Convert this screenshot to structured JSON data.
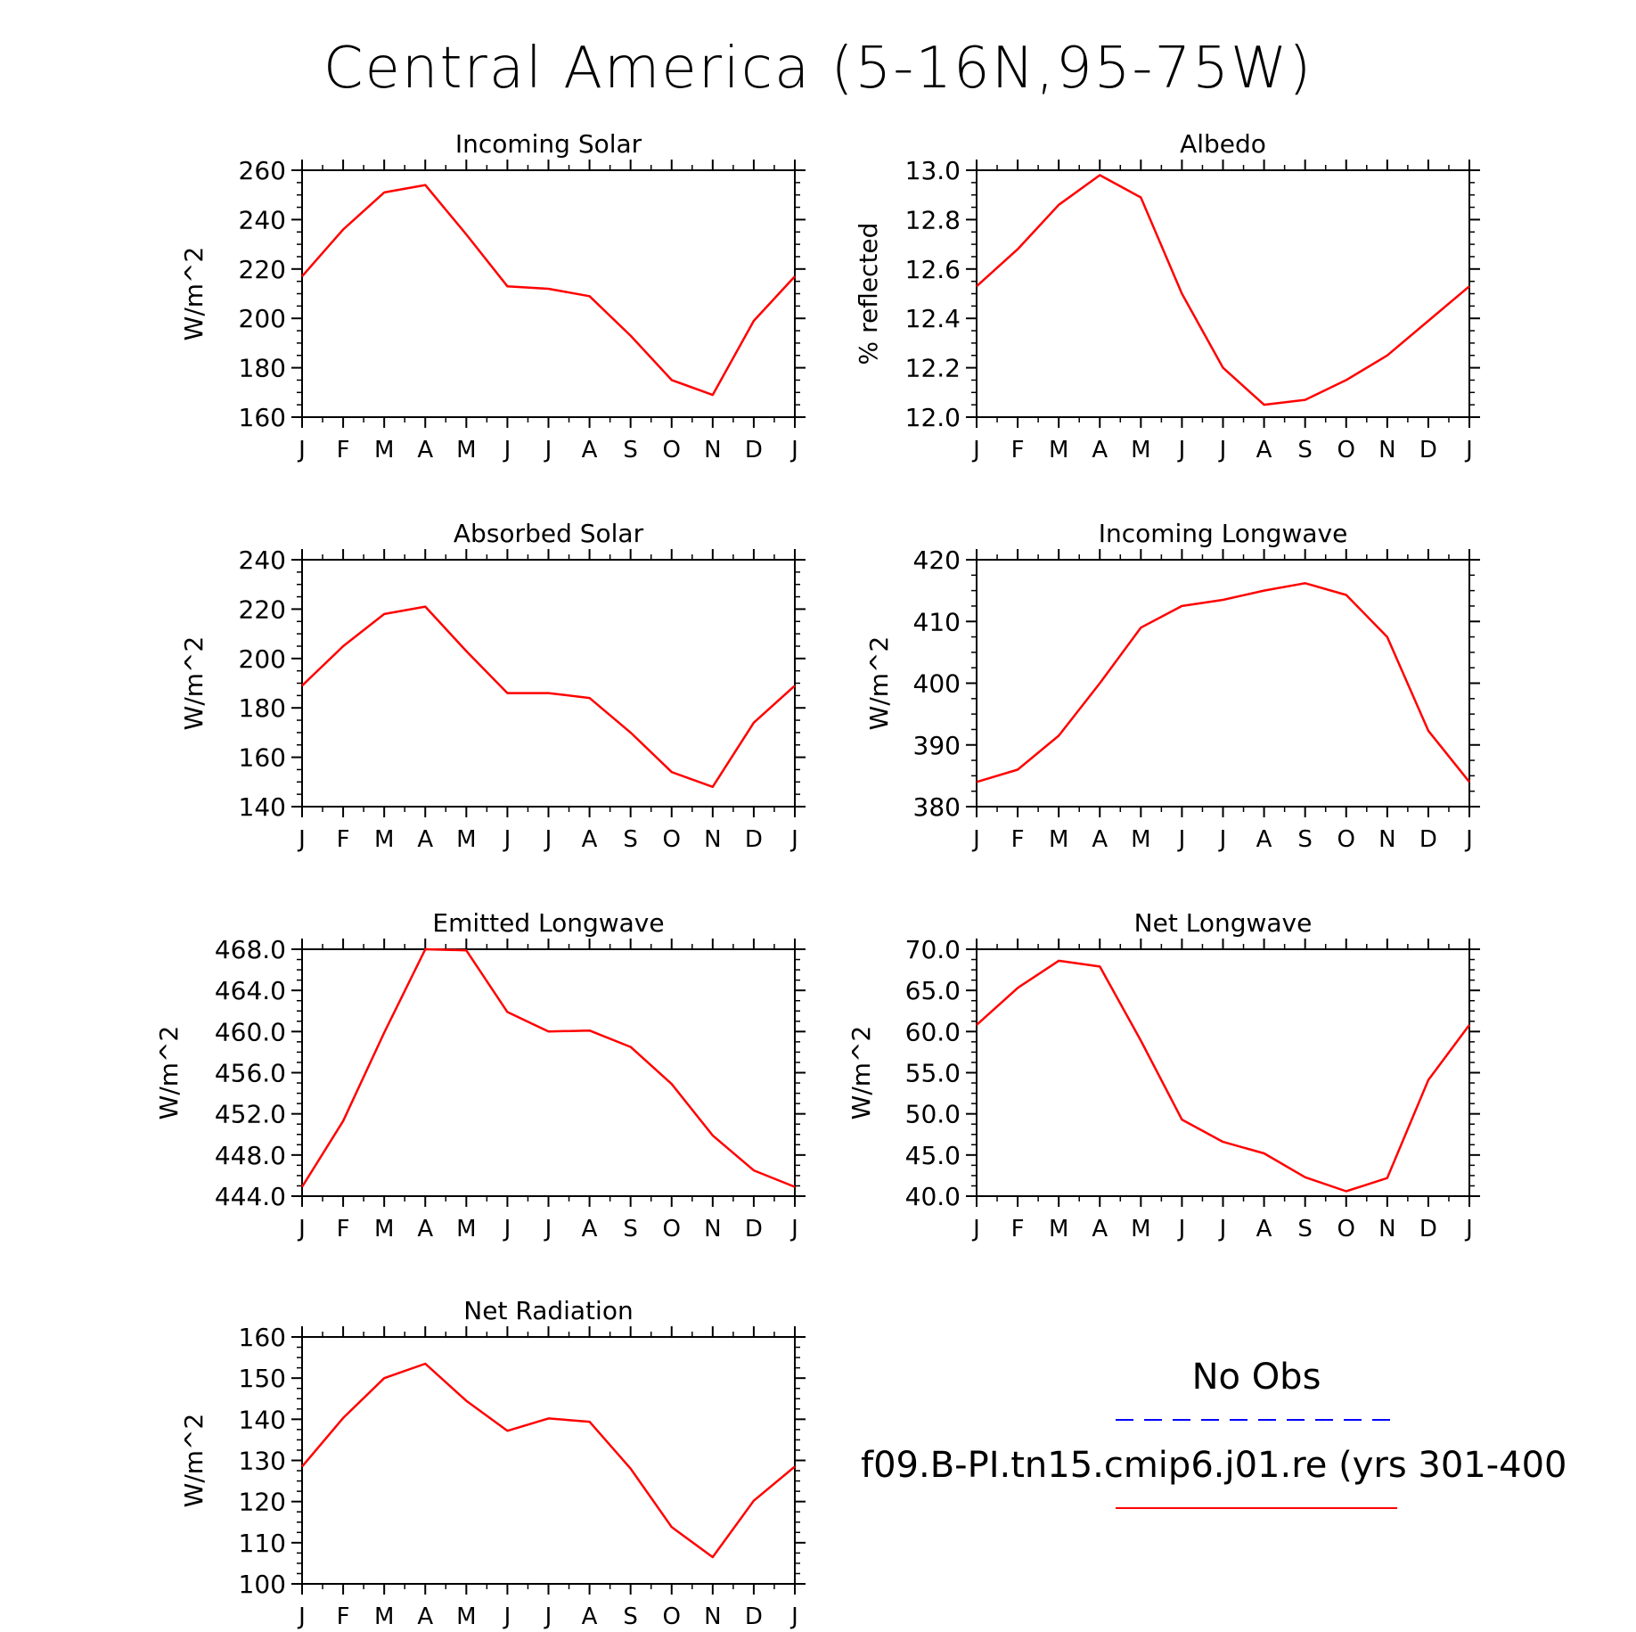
{
  "title": "Central America (5-16N,95-75W)",
  "months": [
    "J",
    "F",
    "M",
    "A",
    "M",
    "J",
    "J",
    "A",
    "S",
    "O",
    "N",
    "D",
    "J"
  ],
  "series_color": "#ff0000",
  "obs_color": "#0000ff",
  "legend": {
    "obs_label": "No Obs",
    "model_label": "f09.B-PI.tn15.cmip6.j01.re (yrs 301-400"
  },
  "chart_data": [
    {
      "type": "line",
      "title": "Incoming Solar",
      "ylabel": "W/m^2",
      "ylim": [
        160,
        260
      ],
      "yticks": [
        "160",
        "180",
        "200",
        "220",
        "240",
        "260"
      ],
      "categories": [
        "J",
        "F",
        "M",
        "A",
        "M",
        "J",
        "J",
        "A",
        "S",
        "O",
        "N",
        "D",
        "J"
      ],
      "series": [
        {
          "name": "f09.B-PI.tn15.cmip6.j01.re (yrs 301-400",
          "values": [
            217,
            236,
            251,
            254,
            234,
            213,
            212,
            209,
            193,
            175,
            169,
            199,
            217
          ]
        }
      ]
    },
    {
      "type": "line",
      "title": "Albedo",
      "ylabel": "% reflected",
      "ylim": [
        12.0,
        13.0
      ],
      "yticks": [
        "12.0",
        "12.2",
        "12.4",
        "12.6",
        "12.8",
        "13.0"
      ],
      "categories": [
        "J",
        "F",
        "M",
        "A",
        "M",
        "J",
        "J",
        "A",
        "S",
        "O",
        "N",
        "D",
        "J"
      ],
      "series": [
        {
          "name": "f09.B-PI.tn15.cmip6.j01.re (yrs 301-400",
          "values": [
            12.53,
            12.68,
            12.86,
            12.98,
            12.89,
            12.5,
            12.2,
            12.05,
            12.07,
            12.15,
            12.25,
            12.39,
            12.53
          ]
        }
      ]
    },
    {
      "type": "line",
      "title": "Absorbed Solar",
      "ylabel": "W/m^2",
      "ylim": [
        140,
        240
      ],
      "yticks": [
        "140",
        "160",
        "180",
        "200",
        "220",
        "240"
      ],
      "categories": [
        "J",
        "F",
        "M",
        "A",
        "M",
        "J",
        "J",
        "A",
        "S",
        "O",
        "N",
        "D",
        "J"
      ],
      "series": [
        {
          "name": "f09.B-PI.tn15.cmip6.j01.re (yrs 301-400",
          "values": [
            189,
            205,
            218,
            221,
            203,
            186,
            186,
            184,
            170,
            154,
            148,
            174,
            189
          ]
        }
      ]
    },
    {
      "type": "line",
      "title": "Incoming Longwave",
      "ylabel": "W/m^2",
      "ylim": [
        380,
        420
      ],
      "yticks": [
        "380",
        "390",
        "400",
        "410",
        "420"
      ],
      "categories": [
        "J",
        "F",
        "M",
        "A",
        "M",
        "J",
        "J",
        "A",
        "S",
        "O",
        "N",
        "D",
        "J"
      ],
      "series": [
        {
          "name": "f09.B-PI.tn15.cmip6.j01.re (yrs 301-400",
          "values": [
            384,
            386,
            391.5,
            400,
            409,
            412.5,
            413.5,
            415,
            416.2,
            414.3,
            407.5,
            392.3,
            384
          ]
        }
      ]
    },
    {
      "type": "line",
      "title": "Emitted Longwave",
      "ylabel": "W/m^2",
      "ylim": [
        444,
        468
      ],
      "yticks": [
        "444.0",
        "448.0",
        "452.0",
        "456.0",
        "460.0",
        "464.0",
        "468.0"
      ],
      "categories": [
        "J",
        "F",
        "M",
        "A",
        "M",
        "J",
        "J",
        "A",
        "S",
        "O",
        "N",
        "D",
        "J"
      ],
      "series": [
        {
          "name": "f09.B-PI.tn15.cmip6.j01.re (yrs 301-400",
          "values": [
            444.9,
            451.3,
            459.9,
            468.0,
            467.9,
            461.9,
            460.0,
            460.1,
            458.5,
            454.9,
            449.9,
            446.5,
            444.9
          ]
        }
      ]
    },
    {
      "type": "line",
      "title": "Net Longwave",
      "ylabel": "W/m^2",
      "ylim": [
        40,
        70
      ],
      "yticks": [
        "40.0",
        "45.0",
        "50.0",
        "55.0",
        "60.0",
        "65.0",
        "70.0"
      ],
      "categories": [
        "J",
        "F",
        "M",
        "A",
        "M",
        "J",
        "J",
        "A",
        "S",
        "O",
        "N",
        "D",
        "J"
      ],
      "series": [
        {
          "name": "f09.B-PI.tn15.cmip6.j01.re (yrs 301-400",
          "values": [
            60.8,
            65.3,
            68.6,
            67.9,
            58.9,
            49.3,
            46.6,
            45.2,
            42.3,
            40.6,
            42.2,
            54.1,
            60.8
          ]
        }
      ]
    },
    {
      "type": "line",
      "title": "Net Radiation",
      "ylabel": "W/m^2",
      "ylim": [
        100,
        160
      ],
      "yticks": [
        "100",
        "110",
        "120",
        "130",
        "140",
        "150",
        "160"
      ],
      "categories": [
        "J",
        "F",
        "M",
        "A",
        "M",
        "J",
        "J",
        "A",
        "S",
        "O",
        "N",
        "D",
        "J"
      ],
      "series": [
        {
          "name": "f09.B-PI.tn15.cmip6.j01.re (yrs 301-400",
          "values": [
            128.5,
            140.3,
            150.0,
            153.5,
            144.5,
            137.2,
            140.2,
            139.4,
            128.0,
            113.8,
            106.5,
            120.2,
            128.5
          ]
        }
      ]
    }
  ]
}
